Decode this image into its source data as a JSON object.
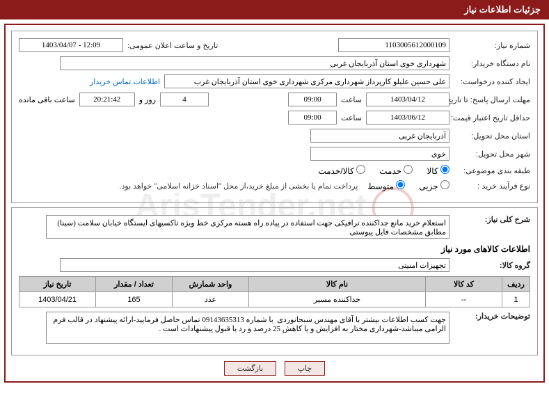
{
  "header": {
    "title": "جزئیات اطلاعات نیاز"
  },
  "fields": {
    "need_no_label": "شماره نیاز:",
    "need_no": "1103005612000109",
    "announce_dt_label": "تاریخ و ساعت اعلان عمومی:",
    "announce_dt": "12:09 - 1403/04/07",
    "buyer_org_label": "نام دستگاه خریدار:",
    "buyer_org": "شهرداری خوی استان آذربایجان غربی",
    "requester_label": "ایجاد کننده درخواست:",
    "requester": "علی حسین علیلو کارپرداز شهرداری مرکزی شهرداری خوی استان آذربایجان غرب",
    "contact_link": "اطلاعات تماس خریدار",
    "reply_deadline_label": "مهلت ارسال پاسخ: تا تاریخ:",
    "reply_date": "1403/04/12",
    "time_label": "ساعت",
    "reply_time": "09:00",
    "days": "4",
    "day_and": "روز و",
    "remaining_time": "20:21:42",
    "remaining_label": "ساعت باقی مانده",
    "validity_label": "حداقل تاریخ اعتبار قیمت: تا تاریخ:",
    "validity_date": "1403/06/12",
    "validity_time": "09:00",
    "province_label": "استان محل تحویل:",
    "province": "آذربایجان غربی",
    "city_label": "شهر محل تحویل:",
    "city": "خوی",
    "category_label": "طبقه بندی موضوعی:",
    "cat_goods": "کالا",
    "cat_service": "خدمت",
    "cat_both": "کالا/خدمت",
    "process_label": "نوع فرآیند خرید :",
    "proc_small": "جزیی",
    "proc_medium": "متوسط",
    "process_note": "پرداخت تمام یا بخشی از مبلغ خرید،از محل \"اسناد خزانه اسلامی\" خواهد بود.",
    "desc_label": "شرح کلی نیاز:",
    "desc_text": "استعلام خرید مانع جداکننده ترافیکی جهت استفاده در پیاده راه هسته مرکزی خط ویژه تاکسیهای ایستگاه خیابان سلامت (سینا) مطابق مشخصات فایل پیوستی",
    "goods_section": "اطلاعات کالاهای مورد نیاز",
    "goods_group_label": "گروه کالا:",
    "goods_group": "تجهیزات امنیتی",
    "buyer_notes_label": "توضیحات خریدار:",
    "buyer_notes": "جهت کسب اطلاعات بیشتر با آقای مهندس سبحانوردی  با شماره 09143635313 تماس حاصل فرمایید-ارائه پیشنهاد در قالب فرم الزامی میباشد-شهرداری مختار به افزایش و یا کاهش 25 درصد و رد یا قبول پیشنهادات است ."
  },
  "table": {
    "headers": [
      "ردیف",
      "کد کالا",
      "نام کالا",
      "واحد شمارش",
      "تعداد / مقدار",
      "تاریخ نیاز"
    ],
    "rows": [
      [
        "1",
        "--",
        "جداکننده مسیر",
        "عدد",
        "165",
        "1403/04/21"
      ]
    ]
  },
  "buttons": {
    "print": "چاپ",
    "back": "بازگشت"
  },
  "watermark": "ArisTender.net"
}
